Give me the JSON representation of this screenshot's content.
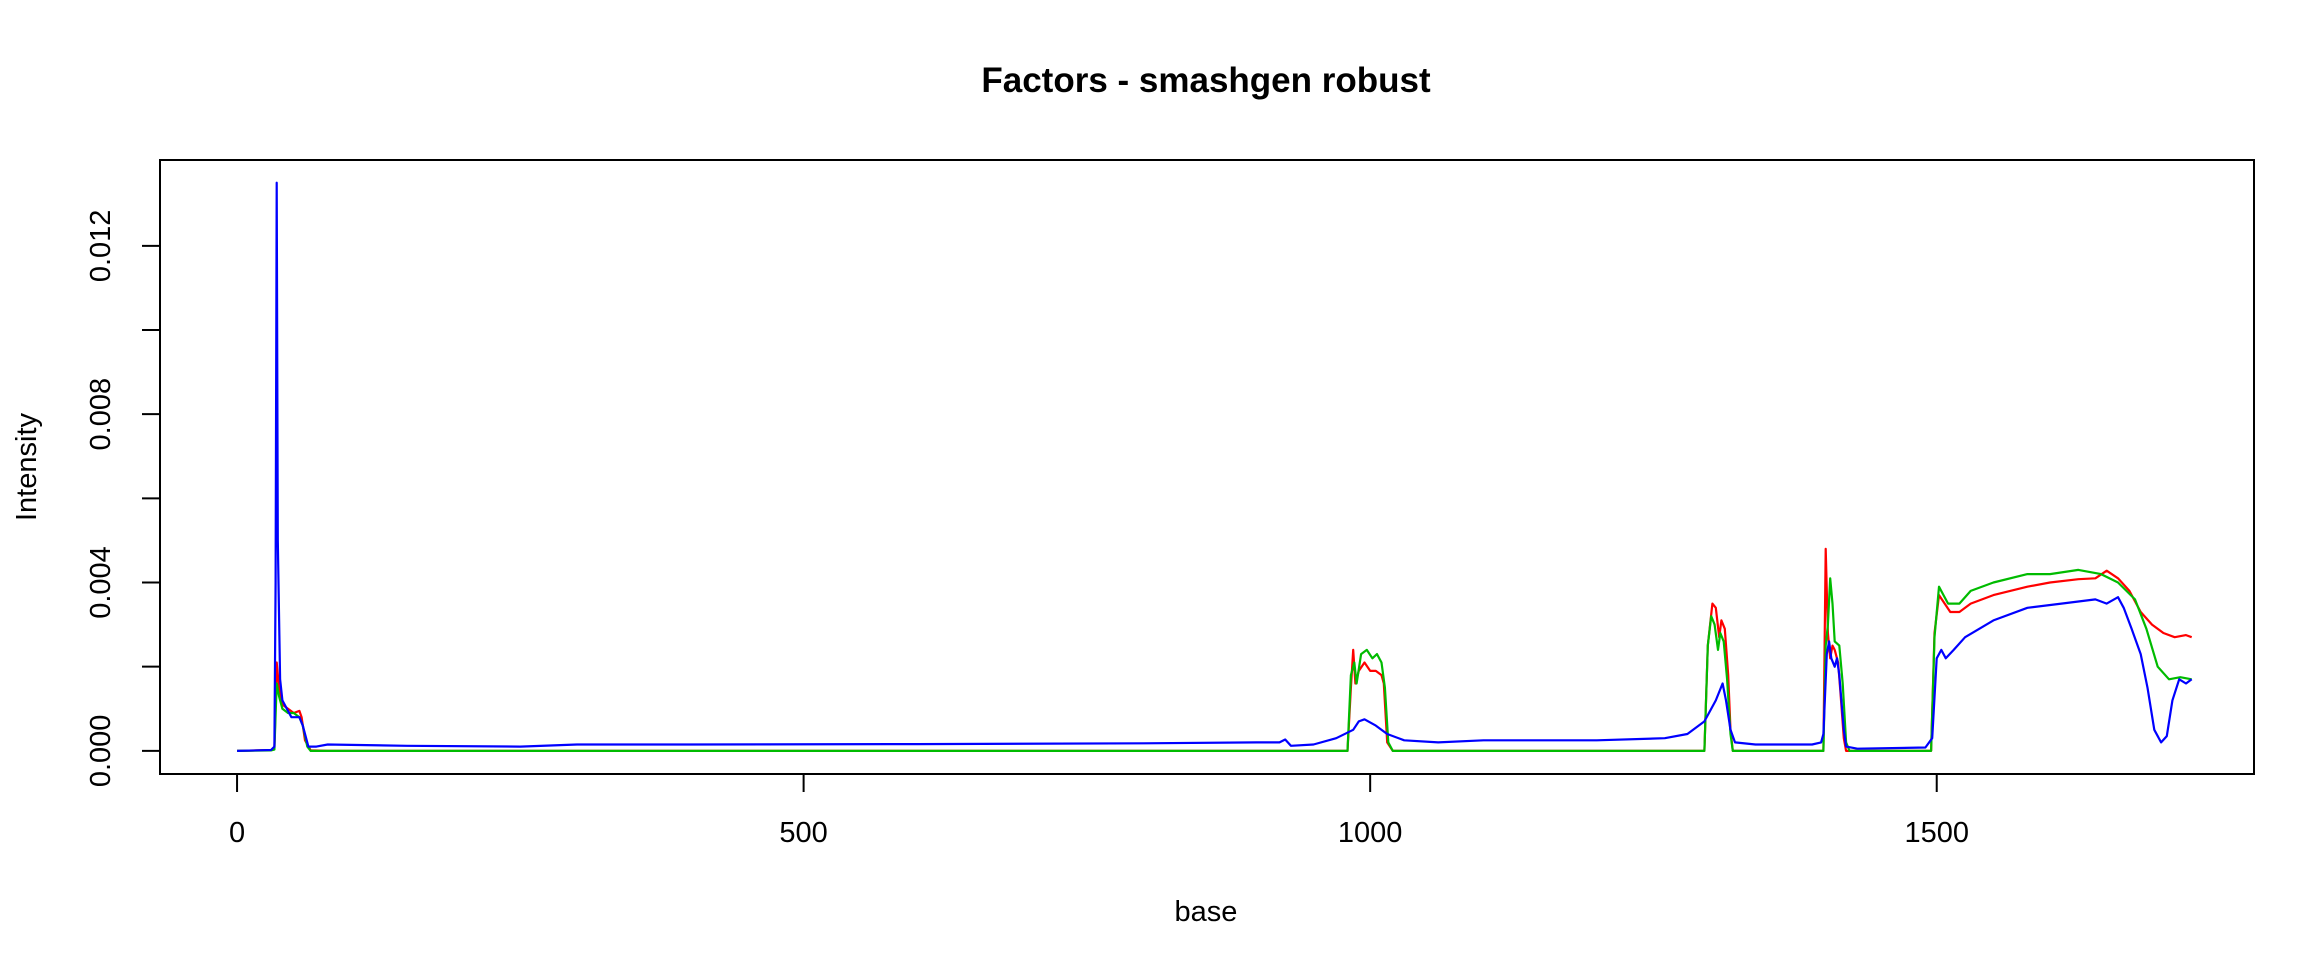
{
  "chart_data": {
    "type": "line",
    "title": "Factors - smashgen robust",
    "xlabel": "base",
    "ylabel": "Intensity",
    "xlim": [
      -68,
      1780
    ],
    "ylim": [
      -0.00055,
      0.01404
    ],
    "x_ticks": [
      0,
      500,
      1000,
      1500
    ],
    "x_tick_labels": [
      "0",
      "500",
      "1000",
      "1500"
    ],
    "y_ticks": [
      0.0,
      0.002,
      0.004,
      0.006,
      0.008,
      0.01,
      0.012
    ],
    "y_tick_labels": [
      "0.000",
      "",
      "0.004",
      "",
      "0.008",
      "",
      "0.012"
    ],
    "grid": false,
    "legend": "none",
    "series": [
      {
        "color": "#ff0000",
        "points": [
          [
            0,
            0
          ],
          [
            30,
            2e-05
          ],
          [
            33,
            5e-05
          ],
          [
            35,
            0.0021
          ],
          [
            37,
            0.0015
          ],
          [
            40,
            0.0011
          ],
          [
            45,
            0.001
          ],
          [
            50,
            0.0009
          ],
          [
            55,
            0.00095
          ],
          [
            57,
            0.0008
          ],
          [
            60,
            0.00025
          ],
          [
            65,
            1e-05
          ],
          [
            80,
            0
          ],
          [
            980,
            0
          ],
          [
            983,
            0.0015
          ],
          [
            985,
            0.0024
          ],
          [
            987,
            0.0016
          ],
          [
            990,
            0.0019
          ],
          [
            995,
            0.0021
          ],
          [
            1000,
            0.0019
          ],
          [
            1005,
            0.0019
          ],
          [
            1010,
            0.0018
          ],
          [
            1012,
            0.0016
          ],
          [
            1015,
            0.0002
          ],
          [
            1020,
            0
          ],
          [
            1295,
            0
          ],
          [
            1298,
            0.0025
          ],
          [
            1302,
            0.0035
          ],
          [
            1305,
            0.0034
          ],
          [
            1308,
            0.0027
          ],
          [
            1310,
            0.0031
          ],
          [
            1313,
            0.0029
          ],
          [
            1316,
            0.0018
          ],
          [
            1318,
            0.0005
          ],
          [
            1320,
            0
          ],
          [
            1400,
            0
          ],
          [
            1402,
            0.0048
          ],
          [
            1404,
            0.0028
          ],
          [
            1406,
            0.0022
          ],
          [
            1408,
            0.0025
          ],
          [
            1410,
            0.0024
          ],
          [
            1413,
            0.0021
          ],
          [
            1415,
            0.0014
          ],
          [
            1418,
            0.0003
          ],
          [
            1420,
            0
          ],
          [
            1495,
            0
          ],
          [
            1498,
            0.0028
          ],
          [
            1502,
            0.0037
          ],
          [
            1507,
            0.0035
          ],
          [
            1512,
            0.0033
          ],
          [
            1520,
            0.0033
          ],
          [
            1530,
            0.0035
          ],
          [
            1550,
            0.0037
          ],
          [
            1580,
            0.0039
          ],
          [
            1600,
            0.004
          ],
          [
            1625,
            0.00408
          ],
          [
            1640,
            0.0041
          ],
          [
            1650,
            0.00428
          ],
          [
            1660,
            0.0041
          ],
          [
            1670,
            0.0038
          ],
          [
            1680,
            0.0033
          ],
          [
            1690,
            0.003
          ],
          [
            1700,
            0.0028
          ],
          [
            1710,
            0.0027
          ],
          [
            1720,
            0.00275
          ],
          [
            1725,
            0.0027
          ]
        ]
      },
      {
        "color": "#00bb00",
        "points": [
          [
            0,
            0
          ],
          [
            30,
            1e-05
          ],
          [
            33,
            3e-05
          ],
          [
            35,
            0.0016
          ],
          [
            37,
            0.0013
          ],
          [
            40,
            0.001
          ],
          [
            45,
            0.0009
          ],
          [
            50,
            0.0009
          ],
          [
            55,
            0.0008
          ],
          [
            58,
            0.0006
          ],
          [
            62,
            0.0001
          ],
          [
            65,
            0
          ],
          [
            980,
            0
          ],
          [
            983,
            0.0018
          ],
          [
            986,
            0.0021
          ],
          [
            988,
            0.0016
          ],
          [
            992,
            0.0023
          ],
          [
            997,
            0.0024
          ],
          [
            1002,
            0.0022
          ],
          [
            1006,
            0.0023
          ],
          [
            1010,
            0.0021
          ],
          [
            1013,
            0.0015
          ],
          [
            1016,
            0.0002
          ],
          [
            1020,
            0
          ],
          [
            1295,
            0
          ],
          [
            1298,
            0.0025
          ],
          [
            1301,
            0.0032
          ],
          [
            1304,
            0.003
          ],
          [
            1307,
            0.0024
          ],
          [
            1309,
            0.0028
          ],
          [
            1312,
            0.0026
          ],
          [
            1315,
            0.0017
          ],
          [
            1318,
            0.0004
          ],
          [
            1320,
            0
          ],
          [
            1400,
            0
          ],
          [
            1402,
            0.0025
          ],
          [
            1404,
            0.003
          ],
          [
            1406,
            0.0041
          ],
          [
            1408,
            0.0035
          ],
          [
            1410,
            0.0026
          ],
          [
            1414,
            0.0025
          ],
          [
            1417,
            0.0016
          ],
          [
            1420,
            0.0002
          ],
          [
            1423,
            0
          ],
          [
            1495,
            0
          ],
          [
            1498,
            0.0027
          ],
          [
            1502,
            0.0039
          ],
          [
            1506,
            0.0037
          ],
          [
            1510,
            0.0035
          ],
          [
            1520,
            0.0035
          ],
          [
            1530,
            0.0038
          ],
          [
            1550,
            0.004
          ],
          [
            1580,
            0.0042
          ],
          [
            1600,
            0.0042
          ],
          [
            1625,
            0.0043
          ],
          [
            1645,
            0.0042
          ],
          [
            1660,
            0.004
          ],
          [
            1675,
            0.0036
          ],
          [
            1685,
            0.0029
          ],
          [
            1695,
            0.002
          ],
          [
            1705,
            0.0017
          ],
          [
            1715,
            0.00175
          ],
          [
            1725,
            0.0017
          ]
        ]
      },
      {
        "color": "#0000ff",
        "points": [
          [
            0,
            0
          ],
          [
            30,
            2e-05
          ],
          [
            33,
            0.0001
          ],
          [
            34,
            0.004
          ],
          [
            35,
            0.0135
          ],
          [
            36,
            0.005
          ],
          [
            38,
            0.0017
          ],
          [
            40,
            0.0012
          ],
          [
            44,
            0.001
          ],
          [
            48,
            0.0008
          ],
          [
            55,
            0.0008
          ],
          [
            58,
            0.0006
          ],
          [
            63,
            0.0001
          ],
          [
            70,
            0.0001
          ],
          [
            80,
            0.00015
          ],
          [
            150,
            0.00012
          ],
          [
            250,
            0.0001
          ],
          [
            300,
            0.00015
          ],
          [
            400,
            0.00015
          ],
          [
            600,
            0.00016
          ],
          [
            800,
            0.00018
          ],
          [
            900,
            0.0002
          ],
          [
            920,
            0.0002
          ],
          [
            925,
            0.00027
          ],
          [
            930,
            0.00012
          ],
          [
            950,
            0.00015
          ],
          [
            970,
            0.0003
          ],
          [
            985,
            0.0005
          ],
          [
            990,
            0.0007
          ],
          [
            995,
            0.00075
          ],
          [
            1005,
            0.0006
          ],
          [
            1015,
            0.0004
          ],
          [
            1030,
            0.00025
          ],
          [
            1060,
            0.0002
          ],
          [
            1100,
            0.00025
          ],
          [
            1200,
            0.00025
          ],
          [
            1260,
            0.0003
          ],
          [
            1280,
            0.0004
          ],
          [
            1295,
            0.0007
          ],
          [
            1305,
            0.0012
          ],
          [
            1311,
            0.0016
          ],
          [
            1314,
            0.0012
          ],
          [
            1318,
            0.0005
          ],
          [
            1322,
            0.0002
          ],
          [
            1340,
            0.00015
          ],
          [
            1390,
            0.00015
          ],
          [
            1398,
            0.0002
          ],
          [
            1400,
            0.0004
          ],
          [
            1403,
            0.0023
          ],
          [
            1405,
            0.0026
          ],
          [
            1407,
            0.0022
          ],
          [
            1410,
            0.002
          ],
          [
            1412,
            0.0022
          ],
          [
            1414,
            0.0018
          ],
          [
            1418,
            0.0005
          ],
          [
            1420,
            0.0001
          ],
          [
            1430,
            5e-05
          ],
          [
            1490,
            8e-05
          ],
          [
            1496,
            0.0003
          ],
          [
            1500,
            0.0022
          ],
          [
            1504,
            0.0024
          ],
          [
            1508,
            0.0022
          ],
          [
            1515,
            0.0024
          ],
          [
            1525,
            0.0027
          ],
          [
            1550,
            0.0031
          ],
          [
            1580,
            0.0034
          ],
          [
            1610,
            0.0035
          ],
          [
            1640,
            0.0036
          ],
          [
            1650,
            0.0035
          ],
          [
            1660,
            0.00365
          ],
          [
            1665,
            0.0034
          ],
          [
            1672,
            0.0029
          ],
          [
            1680,
            0.0023
          ],
          [
            1686,
            0.0015
          ],
          [
            1692,
            0.0005
          ],
          [
            1698,
            0.0002
          ],
          [
            1703,
            0.00035
          ],
          [
            1708,
            0.0012
          ],
          [
            1714,
            0.0017
          ],
          [
            1720,
            0.0016
          ],
          [
            1725,
            0.0017
          ]
        ]
      }
    ]
  }
}
